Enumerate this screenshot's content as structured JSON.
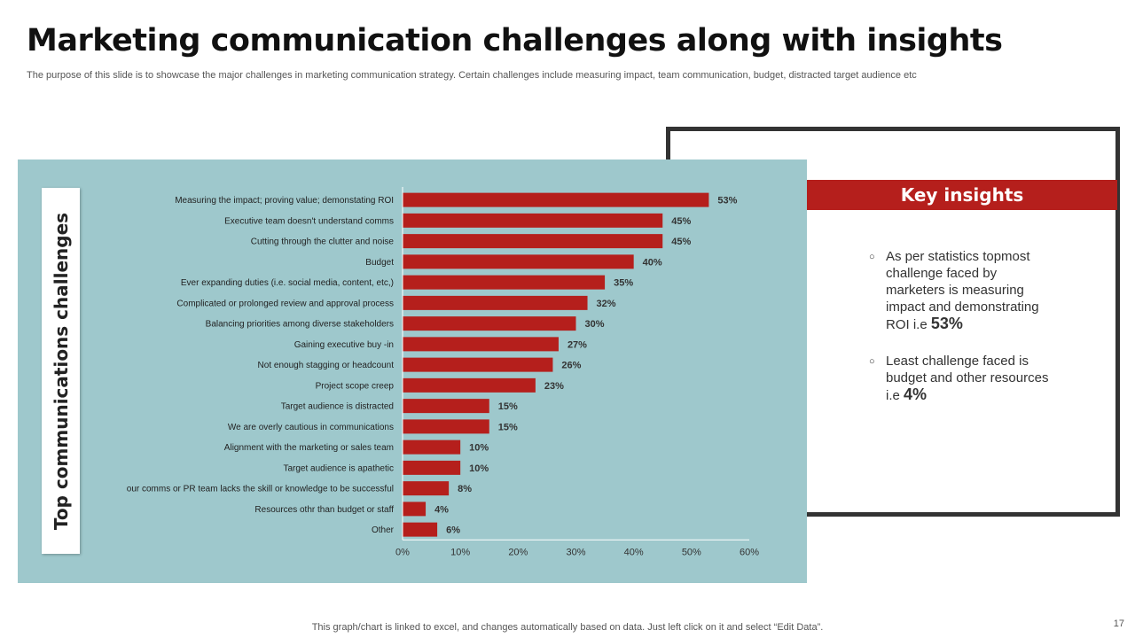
{
  "slide": {
    "title": "Marketing communication challenges along with insights",
    "subtitle": "The purpose of this slide is to showcase the major challenges in marketing communication strategy. Certain challenges include measuring impact, team communication, budget, distracted target audience etc",
    "footer": "This graph/chart is linked to excel,  and changes automatically based on data. Just left click on it and select “Edit Data”.",
    "page_number": "17"
  },
  "insights": {
    "heading": "Key insights",
    "bullet_icon": "hollow-circle",
    "items": [
      {
        "text": "As per statistics topmost challenge faced by marketers is measuring impact and demonstrating ROI i.e ",
        "highlight": "53%"
      },
      {
        "text": "Least challenge  faced is budget and other resources i.e ",
        "highlight": "4%"
      }
    ]
  },
  "colors": {
    "bar": "#b51f1c",
    "panel": "#9ec8cc",
    "accent": "#b51f1c"
  },
  "chart_data": {
    "type": "bar",
    "orientation": "horizontal",
    "ylabel": "Top communications challenges",
    "categories": [
      "Measuring the impact; proving value; demonstating ROI",
      "Executive team doesn't understand comms",
      "Cutting through the clutter and noise",
      "Budget",
      "Ever expanding duties (i.e. social media, content, etc,)",
      "Complicated or prolonged review and approval process",
      "Balancing priorities among diverse stakeholders",
      "Gaining executive buy -in",
      "Not enough stagging or headcount",
      "Project scope creep",
      "Target audience is distracted",
      "We are overly cautious in communications",
      "Alignment with the marketing or sales team",
      "Target audience is apathetic",
      "our comms or PR team lacks the skill or knowledge to be successful",
      "Resources othr than budget or staff",
      "Other"
    ],
    "values": [
      53,
      45,
      45,
      40,
      35,
      32,
      30,
      27,
      26,
      23,
      15,
      15,
      10,
      10,
      8,
      4,
      6
    ],
    "data_labels": [
      "53%",
      "45%",
      "45%",
      "40%",
      "35%",
      "32%",
      "30%",
      "27%",
      "26%",
      "23%",
      "15%",
      "15%",
      "10%",
      "10%",
      "8%",
      "4%",
      "6%"
    ],
    "xlim": [
      0,
      60
    ],
    "xticks": [
      "0%",
      "10%",
      "20%",
      "30%",
      "40%",
      "50%",
      "60%"
    ],
    "grid": false,
    "legend": "none"
  }
}
